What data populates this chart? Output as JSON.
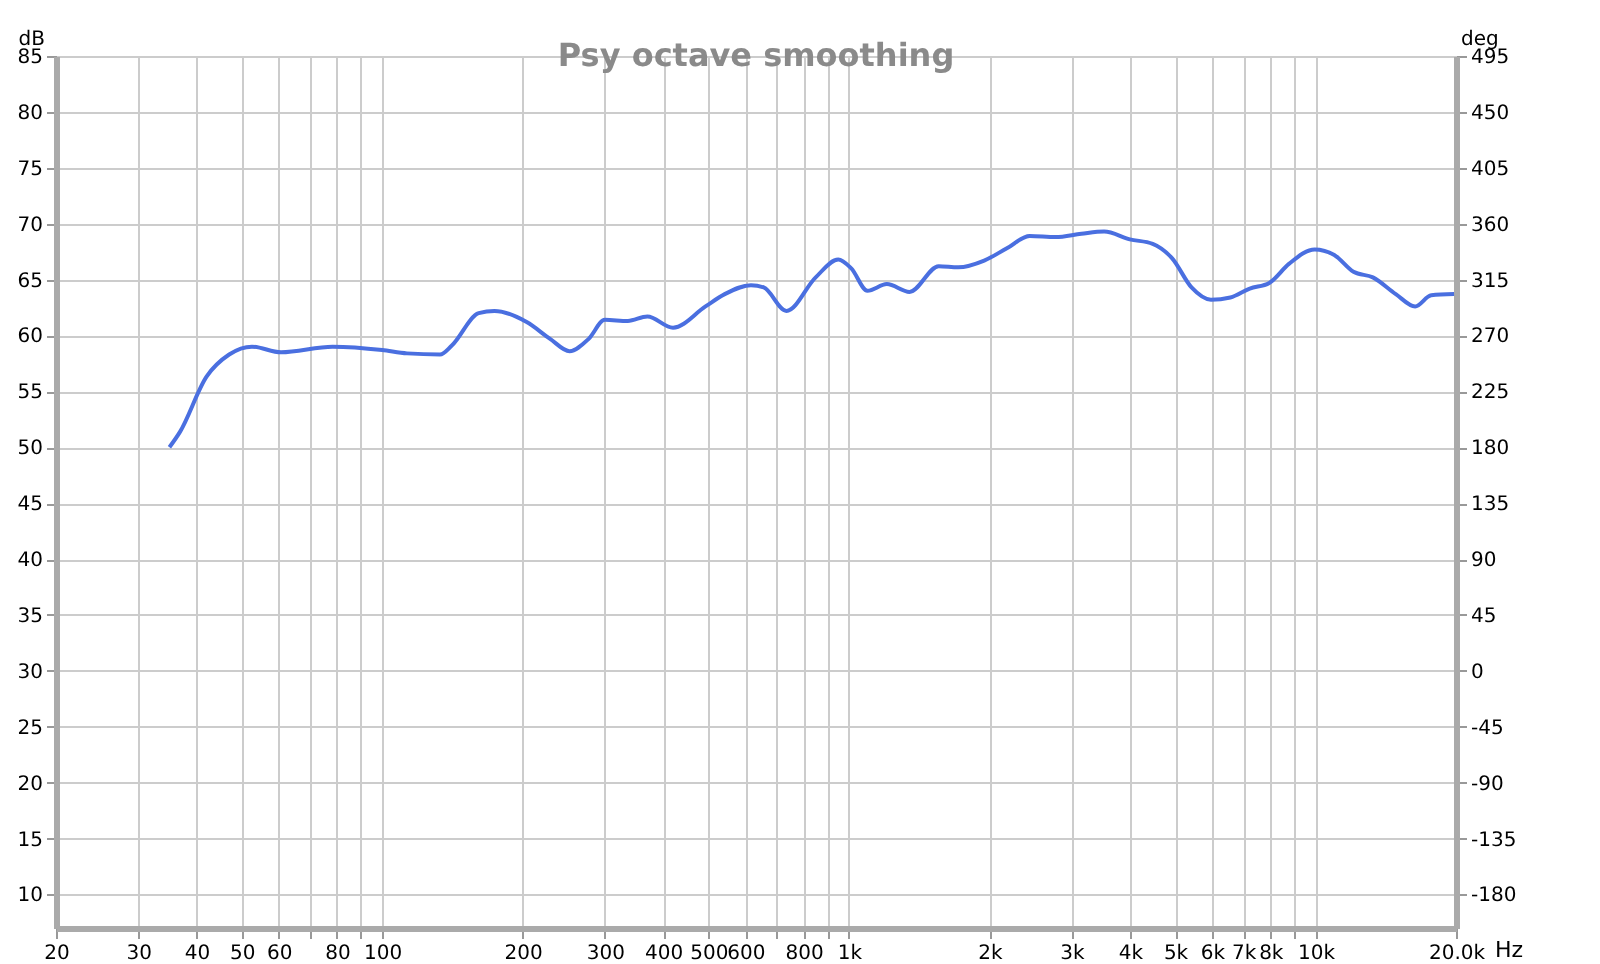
{
  "chart_data": {
    "type": "line",
    "title": "Psy octave smoothing",
    "xlabel": "Hz",
    "ylabel": "dB",
    "y2label": "deg",
    "log": "x",
    "grid": true,
    "marker": "none",
    "line_style": "solid",
    "xlim": [
      20,
      20000
    ],
    "xticks": [
      20,
      30,
      40,
      50,
      60,
      {
        "value": 70,
        "label": null
      },
      80,
      {
        "value": 90,
        "label": null
      },
      100,
      200,
      300,
      400,
      500,
      600,
      {
        "value": 700,
        "label": null
      },
      800,
      {
        "value": 900,
        "label": null
      },
      {
        "value": 1000,
        "label": "1k"
      },
      {
        "value": 2000,
        "label": "2k"
      },
      {
        "value": 3000,
        "label": "3k"
      },
      {
        "value": 4000,
        "label": "4k"
      },
      {
        "value": 5000,
        "label": "5k"
      },
      {
        "value": 6000,
        "label": "6k"
      },
      {
        "value": 7000,
        "label": "7k"
      },
      {
        "value": 8000,
        "label": "8k"
      },
      {
        "value": 9000,
        "label": null
      },
      {
        "value": 10000,
        "label": "10k"
      },
      {
        "value": 20000,
        "label": "20.0k"
      }
    ],
    "ylim": [
      7,
      85
    ],
    "yticks": [
      10,
      15,
      20,
      25,
      30,
      35,
      40,
      45,
      50,
      55,
      60,
      65,
      70,
      75,
      80,
      85
    ],
    "y2lim": [
      -207,
      495
    ],
    "y2ticks": [
      -180,
      -135,
      -90,
      -45,
      0,
      45,
      90,
      135,
      180,
      225,
      270,
      315,
      360,
      405,
      450,
      495
    ],
    "series": [
      {
        "color": "#4a6fe0",
        "x": [
          35.0,
          36.9,
          42.0,
          47.0,
          52.6,
          60.7,
          78.3,
          100,
          113,
          133,
          141,
          161,
          174,
          204,
          229,
          252,
          277,
          300,
          336,
          370,
          420,
          493,
          542,
          617,
          657,
          735,
          849,
          949,
          1012,
          1096,
          1206,
          1349,
          1558,
          1715,
          1950,
          2181,
          2440,
          2773,
          3150,
          3524,
          4000,
          4478,
          4930,
          5424,
          5970,
          6570,
          7230,
          7960,
          8770,
          9960,
          10970,
          12060,
          13270,
          14860,
          16350,
          17700,
          19810
        ],
        "values": [
          50.0,
          51.4,
          56.3,
          58.3,
          59.0,
          58.5,
          59.0,
          58.7,
          58.4,
          58.3,
          59.1,
          62.0,
          62.2,
          61.2,
          59.7,
          58.6,
          59.7,
          61.4,
          61.3,
          61.7,
          60.7,
          62.6,
          63.7,
          64.5,
          64.3,
          62.2,
          65.2,
          66.8,
          66.0,
          64.0,
          64.6,
          63.9,
          66.2,
          66.1,
          66.7,
          67.8,
          68.9,
          68.8,
          69.1,
          69.3,
          68.6,
          68.2,
          66.9,
          64.3,
          63.2,
          63.4,
          64.2,
          64.7,
          66.4,
          67.7,
          67.2,
          65.7,
          65.2,
          63.7,
          62.6,
          63.6,
          63.7
        ]
      }
    ]
  }
}
